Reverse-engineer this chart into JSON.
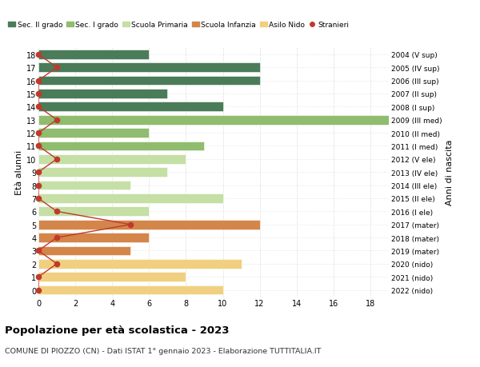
{
  "ages": [
    18,
    17,
    16,
    15,
    14,
    13,
    12,
    11,
    10,
    9,
    8,
    7,
    6,
    5,
    4,
    3,
    2,
    1,
    0
  ],
  "labels_right": [
    "2004 (V sup)",
    "2005 (IV sup)",
    "2006 (III sup)",
    "2007 (II sup)",
    "2008 (I sup)",
    "2009 (III med)",
    "2010 (II med)",
    "2011 (I med)",
    "2012 (V ele)",
    "2013 (IV ele)",
    "2014 (III ele)",
    "2015 (II ele)",
    "2016 (I ele)",
    "2017 (mater)",
    "2018 (mater)",
    "2019 (mater)",
    "2020 (nido)",
    "2021 (nido)",
    "2022 (nido)"
  ],
  "bar_values": [
    6,
    12,
    12,
    7,
    10,
    19,
    6,
    9,
    8,
    7,
    5,
    10,
    6,
    12,
    6,
    5,
    11,
    8,
    10
  ],
  "stranieri": [
    0,
    1,
    0,
    0,
    0,
    1,
    0,
    0,
    1,
    0,
    0,
    0,
    1,
    5,
    1,
    0,
    1,
    0,
    0
  ],
  "bar_colors": [
    "#4a7c59",
    "#4a7c59",
    "#4a7c59",
    "#4a7c59",
    "#4a7c59",
    "#8fbc6e",
    "#8fbc6e",
    "#8fbc6e",
    "#c5dfa5",
    "#c5dfa5",
    "#c5dfa5",
    "#c5dfa5",
    "#c5dfa5",
    "#d4854a",
    "#d4854a",
    "#d4854a",
    "#f0d080",
    "#f0d080",
    "#f0d080"
  ],
  "legend_labels": [
    "Sec. II grado",
    "Sec. I grado",
    "Scuola Primaria",
    "Scuola Infanzia",
    "Asilo Nido",
    "Stranieri"
  ],
  "legend_colors": [
    "#4a7c59",
    "#8fbc6e",
    "#c5dfa5",
    "#d4854a",
    "#f0d080",
    "#c0392b"
  ],
  "stranieri_color": "#c0392b",
  "stranieri_line_color": "#c0392b",
  "ylabel_left": "Età alunni",
  "ylabel_right": "Anni di nascita",
  "title": "Popolazione per età scolastica - 2023",
  "subtitle": "COMUNE DI PIOZZO (CN) - Dati ISTAT 1° gennaio 2023 - Elaborazione TUTTITALIA.IT",
  "xlim": [
    0,
    19
  ],
  "background_color": "#ffffff",
  "grid_color": "#cccccc"
}
